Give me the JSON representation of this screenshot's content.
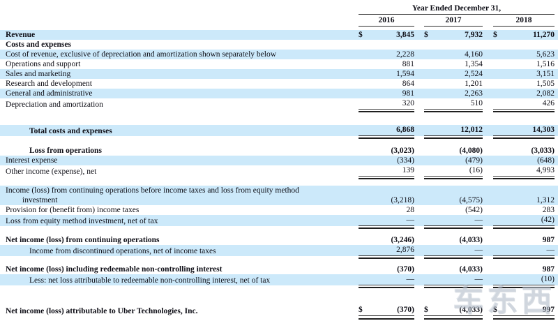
{
  "table": {
    "period_label": "Year Ended December 31,",
    "years": [
      "2016",
      "2017",
      "2018"
    ],
    "currency_symbol": "$",
    "rows": [
      {
        "label": "Revenue",
        "values": [
          "3,845",
          "7,932",
          "11,270"
        ],
        "dollar": true,
        "bold": true,
        "bg": "blue"
      },
      {
        "label": "Costs and expenses",
        "values": [
          "",
          "",
          ""
        ],
        "bold": true,
        "bg": "white"
      },
      {
        "label": "Cost of revenue, exclusive of depreciation and amortization shown separately below",
        "values": [
          "2,228",
          "4,160",
          "5,623"
        ],
        "bg": "blue"
      },
      {
        "label": "Operations and support",
        "values": [
          "881",
          "1,354",
          "1,516"
        ],
        "bg": "white"
      },
      {
        "label": "Sales and marketing",
        "values": [
          "1,594",
          "2,524",
          "3,151"
        ],
        "bg": "blue"
      },
      {
        "label": "Research and development",
        "values": [
          "864",
          "1,201",
          "1,505"
        ],
        "bg": "white"
      },
      {
        "label": "General and administrative",
        "values": [
          "981",
          "2,263",
          "2,082"
        ],
        "bg": "blue"
      },
      {
        "label": "Depreciation and amortization",
        "values": [
          "320",
          "510",
          "426"
        ],
        "bg": "white",
        "rule": "single"
      },
      {
        "spacer": 22
      },
      {
        "label": "Total costs and expenses",
        "values": [
          "6,868",
          "12,012",
          "14,303"
        ],
        "bold": true,
        "bg": "blue",
        "indent": true,
        "rule": "single"
      },
      {
        "spacer": 14
      },
      {
        "label": "Loss from operations",
        "values": [
          "(3,023)",
          "(4,080)",
          "(3,033)"
        ],
        "bold": true,
        "bg": "white",
        "indent": true
      },
      {
        "label": "Interest expense",
        "values": [
          "(334)",
          "(479)",
          "(648)"
        ],
        "bg": "blue"
      },
      {
        "label": "Other income (expense), net",
        "values": [
          "139",
          "(16)",
          "4,993"
        ],
        "bg": "white",
        "rule": "single"
      },
      {
        "spacer": 13
      },
      {
        "label": "Income (loss) from continuing operations before income taxes and loss from equity method",
        "label2": "investment",
        "values": [
          "(3,218)",
          "(4,575)",
          "1,312"
        ],
        "bg": "blue"
      },
      {
        "label": "Provision for (benefit from) income taxes",
        "values": [
          "28",
          "(542)",
          "283"
        ],
        "bg": "white"
      },
      {
        "label": "Loss from equity method investment, net of tax",
        "values": [
          "—",
          "—",
          "(42)"
        ],
        "bg": "blue",
        "rule": "single"
      },
      {
        "spacer": 13
      },
      {
        "label": "Net income (loss) from continuing operations",
        "values": [
          "(3,246)",
          "(4,033)",
          "987"
        ],
        "bold": true,
        "bg": "white"
      },
      {
        "label": "Income from discontinued operations, net of income taxes",
        "values": [
          "2,876",
          "—",
          "—"
        ],
        "bg": "blue",
        "indent": true,
        "rule": "single"
      },
      {
        "spacer": 12
      },
      {
        "label": "Net income (loss) including redeemable non-controlling interest",
        "values": [
          "(370)",
          "(4,033)",
          "987"
        ],
        "bold": true,
        "bg": "white"
      },
      {
        "label": "Less: net loss attributable to redeemable non-controlling interest, net of tax",
        "values": [
          "—",
          "—",
          "(10)"
        ],
        "bg": "blue",
        "indent": true,
        "rule": "single"
      },
      {
        "spacer": 28
      },
      {
        "label": "Net income (loss) attributable to Uber Technologies, Inc.",
        "values": [
          "(370)",
          "(4,033)",
          "997"
        ],
        "dollar": true,
        "bold": true,
        "bg": "white",
        "rule": "double"
      }
    ]
  },
  "watermark": {
    "text": "车东西"
  },
  "colors": {
    "stripe": "#cce9fa",
    "text": "#0d0d15",
    "rule": "#2e2e2e"
  }
}
